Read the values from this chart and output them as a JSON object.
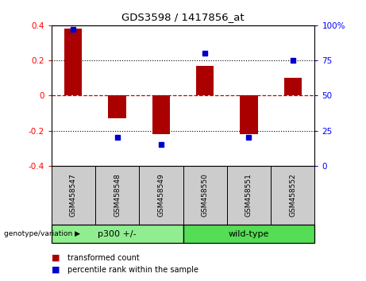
{
  "title": "GDS3598 / 1417856_at",
  "samples": [
    "GSM458547",
    "GSM458548",
    "GSM458549",
    "GSM458550",
    "GSM458551",
    "GSM458552"
  ],
  "red_bars": [
    0.38,
    -0.13,
    -0.22,
    0.17,
    -0.22,
    0.1
  ],
  "blue_points": [
    97,
    20,
    15,
    80,
    20,
    75
  ],
  "groups": [
    {
      "label": "p300 +/-",
      "start": 0,
      "end": 3,
      "color": "#90EE90"
    },
    {
      "label": "wild-type",
      "start": 3,
      "end": 6,
      "color": "#66DD66"
    }
  ],
  "group_label": "genotype/variation",
  "ylim_left": [
    -0.4,
    0.4
  ],
  "ylim_right": [
    0,
    100
  ],
  "yticks_left": [
    -0.4,
    -0.2,
    0.0,
    0.2,
    0.4
  ],
  "yticks_right": [
    0,
    25,
    50,
    75,
    100
  ],
  "bar_color": "#AA0000",
  "point_color": "#0000CC",
  "legend_red": "transformed count",
  "legend_blue": "percentile rank within the sample",
  "hline_color": "#CC0000",
  "dotted_color": "black",
  "xlab_bg": "#CCCCCC",
  "group_bg1": "#90EE90",
  "group_bg2": "#55DD55"
}
